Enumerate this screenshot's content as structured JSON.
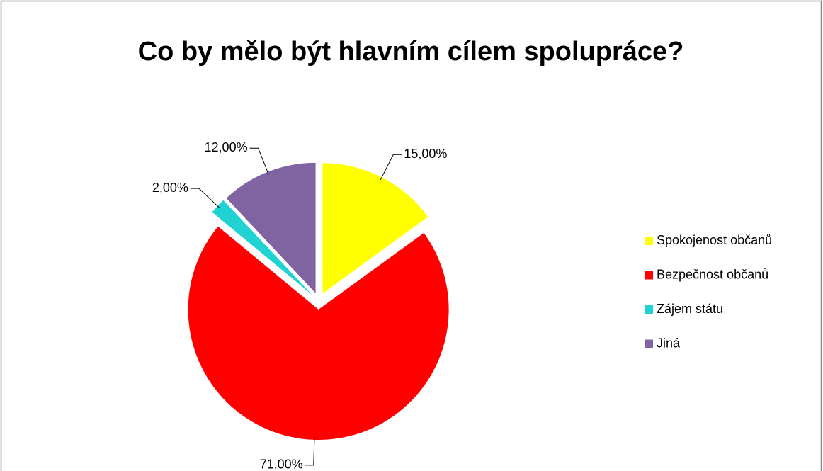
{
  "chart_data": {
    "type": "pie",
    "title": "Co by mělo být hlavním cílem spolupráce?",
    "categories": [
      "Spokojenost občanů",
      "Bezpečnost občanů",
      "Zájem státu",
      "Jiná"
    ],
    "values": [
      15,
      71,
      2,
      12
    ],
    "value_labels": [
      "15,00%",
      "71,00%",
      "2,00%",
      "12,00%"
    ],
    "colors": [
      "#ffff00",
      "#ff0000",
      "#1fd3d3",
      "#8064a2"
    ],
    "legend": "right"
  }
}
